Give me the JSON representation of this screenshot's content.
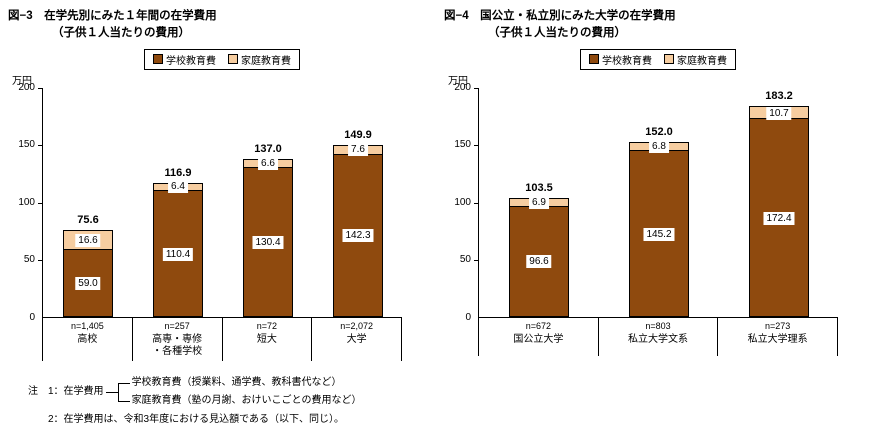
{
  "legend": {
    "school_label": "学校教育費",
    "home_label": "家庭教育費"
  },
  "colors": {
    "school": "#8f4a0e",
    "home": "#f6cda0",
    "bar_border": "#000000"
  },
  "y_axis": {
    "unit": "万円",
    "max": 200,
    "ticks": [
      0,
      50,
      100,
      150,
      200
    ]
  },
  "chart_data": [
    {
      "type": "bar",
      "stacked": true,
      "title_line1": "図−3　在学先別にみた１年間の在学費用",
      "title_line2": "（子供１人当たりの費用）",
      "ylim": [
        0,
        200
      ],
      "categories": [
        [
          "高校"
        ],
        [
          "高専・専修",
          "・各種学校"
        ],
        [
          "短大"
        ],
        [
          "大学"
        ]
      ],
      "n_labels": [
        "n=1,405",
        "n=257",
        "n=72",
        "n=2,072"
      ],
      "series": [
        {
          "name": "学校教育費",
          "values": [
            "59.0",
            "110.4",
            "130.4",
            "142.3"
          ]
        },
        {
          "name": "家庭教育費",
          "values": [
            "16.6",
            "6.4",
            "6.6",
            "7.6"
          ]
        }
      ],
      "totals": [
        "75.6",
        "116.9",
        "137.0",
        "149.9"
      ]
    },
    {
      "type": "bar",
      "stacked": true,
      "title_line1": "図−4　国公立・私立別にみた大学の在学費用",
      "title_line2": "（子供１人当たりの費用）",
      "ylim": [
        0,
        200
      ],
      "categories": [
        [
          "国公立大学"
        ],
        [
          "私立大学文系"
        ],
        [
          "私立大学理系"
        ]
      ],
      "n_labels": [
        "n=672",
        "n=803",
        "n=273"
      ],
      "series": [
        {
          "name": "学校教育費",
          "values": [
            "96.6",
            "145.2",
            "172.4"
          ]
        },
        {
          "name": "家庭教育費",
          "values": [
            "6.9",
            "6.8",
            "10.7"
          ]
        }
      ],
      "totals": [
        "103.5",
        "152.0",
        "183.2"
      ]
    }
  ],
  "notes": {
    "prefix1": "注　1：在学費用",
    "branch1": "学校教育費（授業料、通学費、教科書代など）",
    "branch2": "家庭教育費（塾の月謝、おけいこごとの費用など）",
    "line2": "2：在学費用は、令和3年度における見込額である（以下、同じ）。"
  }
}
